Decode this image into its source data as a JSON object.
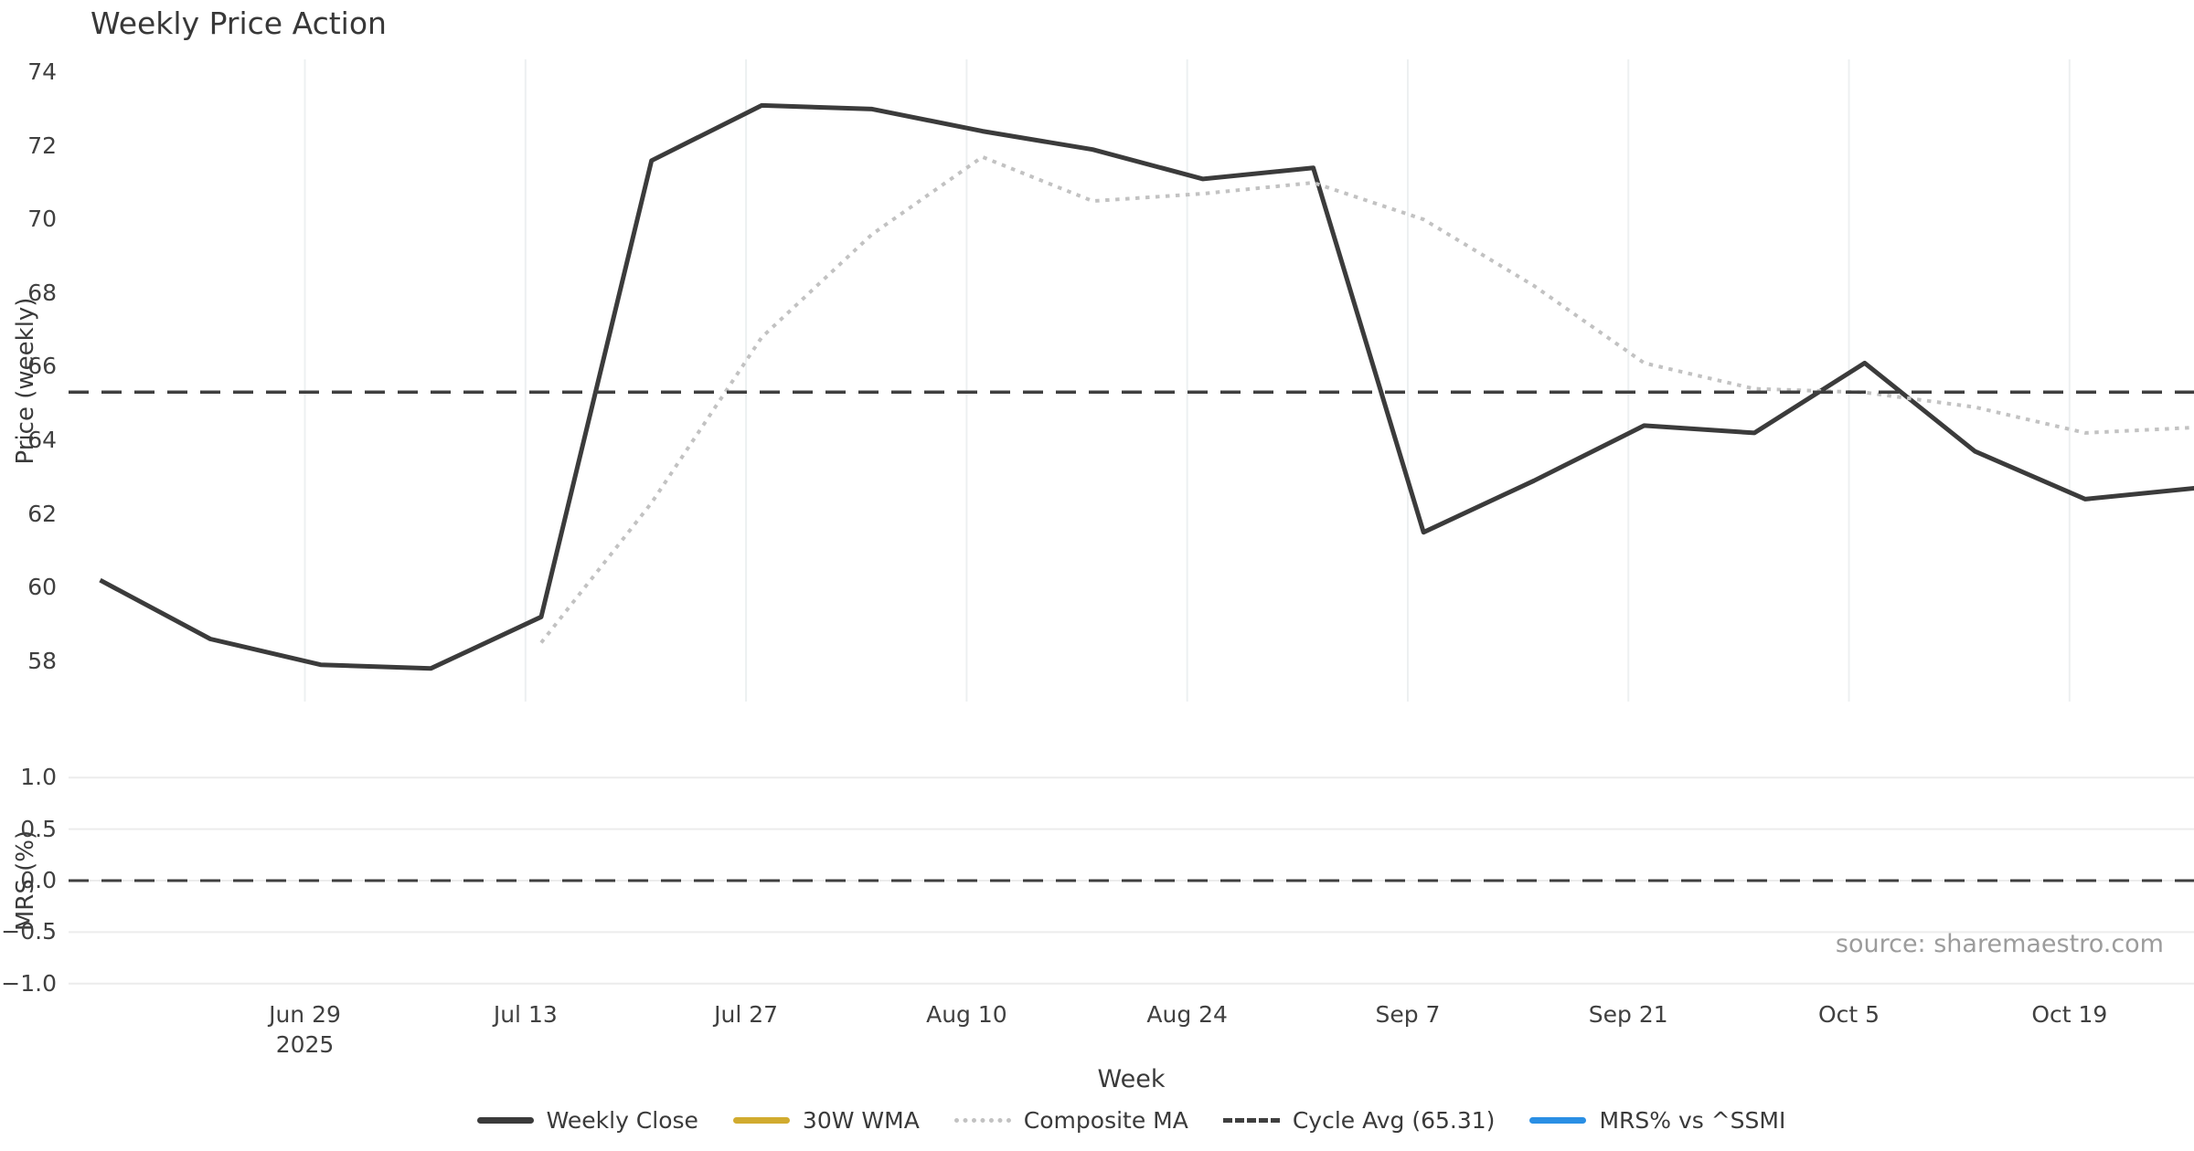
{
  "title": "Weekly Price Action",
  "source": "source: sharemaestro.com",
  "axes": {
    "x_label": "Week",
    "price_axis_label": "Price (weekly)",
    "mrs_axis_label": "MRS (%)"
  },
  "colors": {
    "weekly_close": "#3b3b3b",
    "wma_30": "#d1ab2f",
    "composite_ma": "#c2c2c2",
    "cycle_avg": "#3f3f3f",
    "mrs": "#2a8fe4",
    "grid_vertical": "#edf0f1",
    "grid_horizontal": "#ececec",
    "text": "#3a3a3a",
    "muted_text": "#9c9c9c"
  },
  "legend": {
    "items": [
      {
        "label": "Weekly Close",
        "style": "solid",
        "color_key": "weekly_close"
      },
      {
        "label": "30W WMA",
        "style": "solid",
        "color_key": "wma_30"
      },
      {
        "label": "Composite MA",
        "style": "dotted",
        "color_key": "composite_ma"
      },
      {
        "label": "Cycle Avg (65.31)",
        "style": "dashed",
        "color_key": "cycle_avg"
      },
      {
        "label": "MRS% vs ^SSMI",
        "style": "solid",
        "color_key": "mrs"
      }
    ]
  },
  "chart_data": {
    "type": "line",
    "title": "Weekly Price Action",
    "xlabel": "Week",
    "legend_position": "bottom center",
    "x": {
      "xlim_days": [
        -2,
        132.9
      ],
      "week_dates": [
        "Jun 16",
        "Jun 23",
        "Jun 30",
        "Jul 7",
        "Jul 14",
        "Jul 21",
        "Jul 28",
        "Aug 4",
        "Aug 11",
        "Aug 18",
        "Aug 25",
        "Sep 1",
        "Sep 8",
        "Sep 15",
        "Sep 22",
        "Sep 29",
        "Oct 6",
        "Oct 13",
        "Oct 20",
        "Oct 27"
      ],
      "ticks": [
        {
          "day": 13,
          "label": "Jun 29",
          "sublabel": "2025"
        },
        {
          "day": 27,
          "label": "Jul 13"
        },
        {
          "day": 41,
          "label": "Jul 27"
        },
        {
          "day": 55,
          "label": "Aug 10"
        },
        {
          "day": 69,
          "label": "Aug 24"
        },
        {
          "day": 83,
          "label": "Sep 7"
        },
        {
          "day": 97,
          "label": "Sep 21"
        },
        {
          "day": 111,
          "label": "Oct 5"
        },
        {
          "day": 125,
          "label": "Oct 19"
        }
      ]
    },
    "panels": [
      {
        "name": "price",
        "ylabel": "Price (weekly)",
        "ylim": [
          56.9,
          74.35
        ],
        "yticks": [
          74,
          72,
          70,
          68,
          66,
          64,
          62,
          60,
          58
        ],
        "grid": "vertical",
        "series": [
          {
            "name": "Weekly Close",
            "color_key": "weekly_close",
            "line": "solid",
            "width": 5,
            "start_day": 0,
            "step_days": 7,
            "values": [
              60.2,
              58.6,
              57.9,
              57.8,
              59.2,
              71.6,
              73.1,
              73.0,
              72.4,
              71.9,
              71.1,
              71.4,
              61.5,
              62.9,
              64.4,
              64.2,
              66.1,
              63.7,
              62.4,
              62.7
            ]
          },
          {
            "name": "30W WMA",
            "color_key": "wma_30",
            "line": "solid",
            "width": 4,
            "start_day": 0,
            "step_days": 7,
            "values": []
          },
          {
            "name": "Composite MA",
            "color_key": "composite_ma",
            "line": "dotted",
            "width": 4,
            "start_day": 28,
            "step_days": 7,
            "values": [
              58.5,
              62.3,
              66.8,
              69.6,
              71.7,
              70.5,
              70.7,
              71.0,
              70.0,
              68.2,
              66.1,
              65.4,
              65.3,
              64.9,
              64.2,
              64.35
            ]
          },
          {
            "name": "Cycle Avg",
            "color_key": "cycle_avg",
            "line": "dashed",
            "width": 3.5,
            "constant": 65.31
          }
        ]
      },
      {
        "name": "mrs",
        "ylabel": "MRS (%)",
        "ylim": [
          -1.1,
          1.1
        ],
        "yticks": [
          1.0,
          0.5,
          0.0,
          -0.5,
          -1.0
        ],
        "ytick_labels": [
          "1.0",
          "0.5",
          "0.0",
          "−0.5",
          "−1.0"
        ],
        "grid": "horizontal",
        "series": [
          {
            "name": "MRS% vs ^SSMI",
            "color_key": "mrs",
            "line": "solid",
            "width": 4,
            "start_day": 0,
            "step_days": 7,
            "values": []
          },
          {
            "name": "Zero line",
            "color_key": "cycle_avg",
            "line": "dashed",
            "width": 3,
            "constant": 0.0
          }
        ]
      }
    ]
  }
}
